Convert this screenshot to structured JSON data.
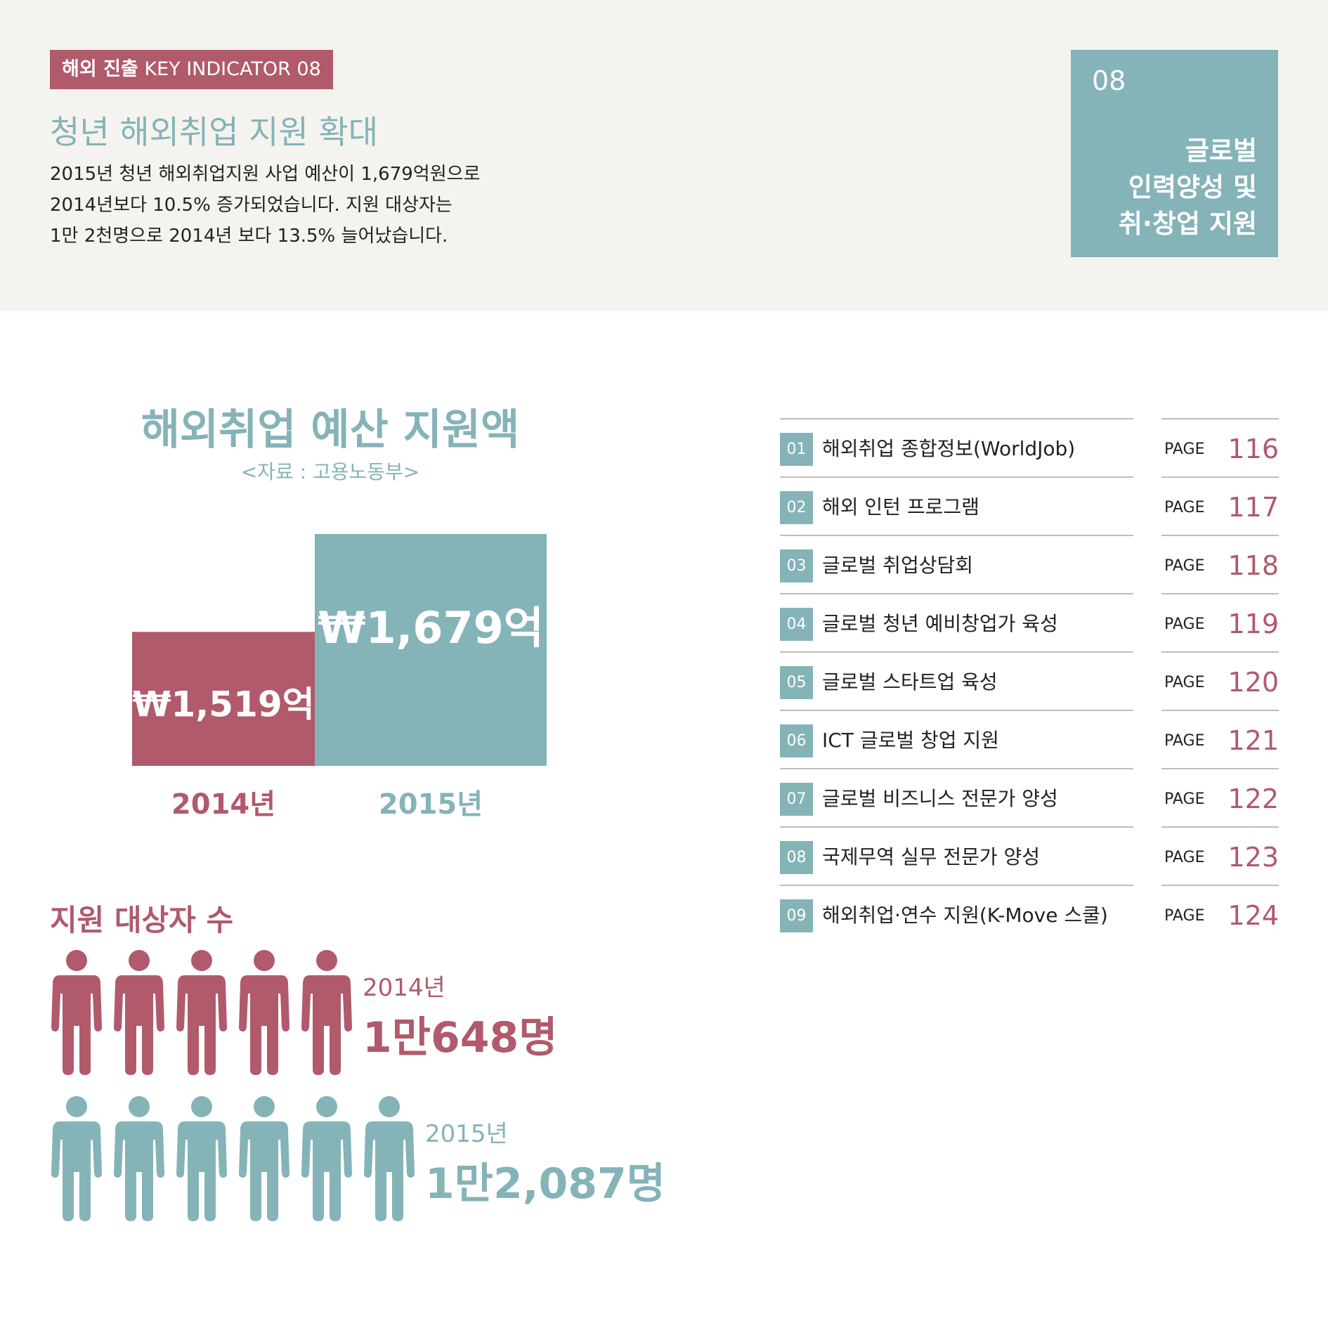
{
  "header": {
    "tag_bold": "해외 진출",
    "tag_rest": "KEY INDICATOR 08",
    "title": "청년 해외취업 지원 확대",
    "description": [
      "2015년 청년 해외취업지원 사업 예산이 1,679억원으로",
      "2014년보다 10.5% 증가되었습니다. 지원 대상자는",
      "1만 2천명으로 2014년 보다 13.5% 늘어났습니다."
    ]
  },
  "chapter": {
    "number": "08",
    "title_lines": [
      "글로벌",
      "인력양성 및",
      "취·창업 지원"
    ]
  },
  "budget": {
    "title": "해외취업 예산 지원액",
    "source": "<자료 : 고용노동부>",
    "bars": [
      {
        "year": "2014년",
        "label": "₩1,519억",
        "value": 1519,
        "color": "#b05a6c"
      },
      {
        "year": "2015년",
        "label": "₩1,679억",
        "value": 1679,
        "color": "#84b3b8"
      }
    ]
  },
  "people": {
    "title": "지원 대상자 수",
    "rows": [
      {
        "year": "2014년",
        "count_label": "1만648명",
        "value": 10648,
        "icons": 5,
        "color": "#b05a6c"
      },
      {
        "year": "2015년",
        "count_label": "1만2,087명",
        "value": 12087,
        "icons": 6,
        "color": "#84b3b8"
      }
    ]
  },
  "toc": {
    "page_label": "PAGE",
    "items": [
      {
        "num": "01",
        "title": "해외취업 종합정보(WorldJob)",
        "page": "116"
      },
      {
        "num": "02",
        "title": "해외 인턴 프로그램",
        "page": "117"
      },
      {
        "num": "03",
        "title": "글로벌 취업상담회",
        "page": "118"
      },
      {
        "num": "04",
        "title": "글로벌 청년 예비창업가 육성",
        "page": "119"
      },
      {
        "num": "05",
        "title": "글로벌 스타트업 육성",
        "page": "120"
      },
      {
        "num": "06",
        "title": "ICT 글로벌 창업 지원",
        "page": "121"
      },
      {
        "num": "07",
        "title": "글로벌 비즈니스 전문가 양성",
        "page": "122"
      },
      {
        "num": "08",
        "title": "국제무역 실무 전문가 양성",
        "page": "123"
      },
      {
        "num": "09",
        "title": "해외취업·연수 지원(K-Move 스쿨)",
        "page": "124"
      }
    ]
  }
}
